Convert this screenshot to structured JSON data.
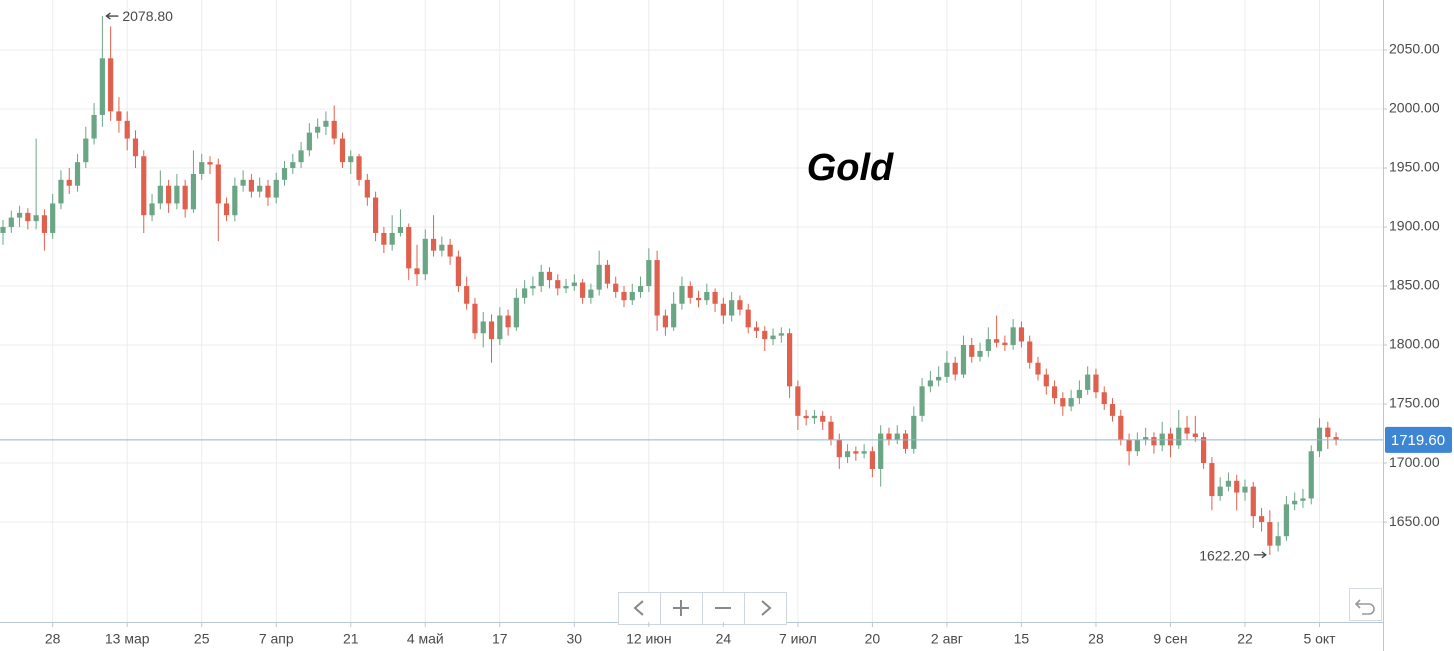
{
  "chart_data": {
    "type": "candlestick",
    "title": "Gold",
    "categories": [
      null,
      null,
      null,
      null,
      null,
      null,
      "28",
      null,
      null,
      null,
      null,
      null,
      null,
      null,
      null,
      "13 мар",
      null,
      null,
      null,
      null,
      null,
      null,
      null,
      null,
      "25",
      null,
      null,
      null,
      null,
      null,
      null,
      null,
      null,
      "7 апр",
      null,
      null,
      null,
      null,
      null,
      null,
      null,
      null,
      "21",
      null,
      null,
      null,
      null,
      null,
      null,
      null,
      null,
      "4 май",
      null,
      null,
      null,
      null,
      null,
      null,
      null,
      null,
      "17",
      null,
      null,
      null,
      null,
      null,
      null,
      null,
      null,
      "30",
      null,
      null,
      null,
      null,
      null,
      null,
      null,
      null,
      "12 июн",
      null,
      null,
      null,
      null,
      null,
      null,
      null,
      null,
      "24",
      null,
      null,
      null,
      null,
      null,
      null,
      null,
      null,
      "7 июл",
      null,
      null,
      null,
      null,
      null,
      null,
      null,
      null,
      "20",
      null,
      null,
      null,
      null,
      null,
      null,
      null,
      null,
      "2 авг",
      null,
      null,
      null,
      null,
      null,
      null,
      null,
      null,
      "15",
      null,
      null,
      null,
      null,
      null,
      null,
      null,
      null,
      "28",
      null,
      null,
      null,
      null,
      null,
      null,
      null,
      null,
      "9 сен",
      null,
      null,
      null,
      null,
      null,
      null,
      null,
      null,
      "22",
      null,
      null,
      null,
      null,
      null,
      null,
      null,
      null,
      "5 окт",
      null,
      null
    ],
    "ohlc": [
      [
        1895,
        1906,
        1885,
        1900
      ],
      [
        1900,
        1914,
        1895,
        1908
      ],
      [
        1908,
        1918,
        1900,
        1912
      ],
      [
        1912,
        1916,
        1898,
        1905
      ],
      [
        1905,
        1975,
        1898,
        1910
      ],
      [
        1910,
        1915,
        1880,
        1895
      ],
      [
        1895,
        1928,
        1890,
        1920
      ],
      [
        1920,
        1948,
        1915,
        1940
      ],
      [
        1940,
        1950,
        1928,
        1935
      ],
      [
        1935,
        1962,
        1930,
        1955
      ],
      [
        1955,
        1985,
        1950,
        1975
      ],
      [
        1975,
        2005,
        1970,
        1995
      ],
      [
        1995,
        2078.8,
        1985,
        2043
      ],
      [
        2043,
        2070,
        1990,
        1998
      ],
      [
        1998,
        2010,
        1980,
        1990
      ],
      [
        1990,
        1998,
        1965,
        1975
      ],
      [
        1975,
        1982,
        1950,
        1960
      ],
      [
        1960,
        1965,
        1895,
        1910
      ],
      [
        1910,
        1928,
        1905,
        1920
      ],
      [
        1920,
        1948,
        1915,
        1935
      ],
      [
        1935,
        1940,
        1912,
        1920
      ],
      [
        1920,
        1945,
        1915,
        1935
      ],
      [
        1935,
        1940,
        1908,
        1915
      ],
      [
        1915,
        1965,
        1912,
        1945
      ],
      [
        1945,
        1962,
        1940,
        1955
      ],
      [
        1955,
        1960,
        1945,
        1953
      ],
      [
        1953,
        1958,
        1888,
        1920
      ],
      [
        1920,
        1925,
        1905,
        1910
      ],
      [
        1910,
        1942,
        1905,
        1935
      ],
      [
        1935,
        1948,
        1930,
        1940
      ],
      [
        1940,
        1945,
        1925,
        1930
      ],
      [
        1930,
        1942,
        1925,
        1935
      ],
      [
        1935,
        1940,
        1918,
        1925
      ],
      [
        1925,
        1946,
        1920,
        1940
      ],
      [
        1940,
        1956,
        1935,
        1950
      ],
      [
        1950,
        1962,
        1945,
        1955
      ],
      [
        1955,
        1972,
        1950,
        1965
      ],
      [
        1965,
        1988,
        1960,
        1980
      ],
      [
        1980,
        1992,
        1975,
        1985
      ],
      [
        1985,
        1998,
        1978,
        1990
      ],
      [
        1990,
        2003,
        1970,
        1975
      ],
      [
        1975,
        1980,
        1950,
        1955
      ],
      [
        1955,
        1965,
        1945,
        1960
      ],
      [
        1960,
        1962,
        1935,
        1940
      ],
      [
        1940,
        1945,
        1918,
        1925
      ],
      [
        1925,
        1930,
        1888,
        1895
      ],
      [
        1895,
        1900,
        1878,
        1885
      ],
      [
        1885,
        1910,
        1880,
        1895
      ],
      [
        1895,
        1915,
        1892,
        1900
      ],
      [
        1900,
        1903,
        1855,
        1865
      ],
      [
        1865,
        1885,
        1850,
        1860
      ],
      [
        1860,
        1898,
        1855,
        1890
      ],
      [
        1890,
        1910,
        1875,
        1880
      ],
      [
        1880,
        1892,
        1875,
        1885
      ],
      [
        1885,
        1890,
        1868,
        1875
      ],
      [
        1875,
        1880,
        1845,
        1850
      ],
      [
        1850,
        1858,
        1830,
        1835
      ],
      [
        1835,
        1840,
        1805,
        1810
      ],
      [
        1810,
        1828,
        1798,
        1820
      ],
      [
        1820,
        1826,
        1785,
        1805
      ],
      [
        1805,
        1832,
        1800,
        1825
      ],
      [
        1825,
        1830,
        1808,
        1815
      ],
      [
        1815,
        1848,
        1812,
        1840
      ],
      [
        1840,
        1855,
        1835,
        1848
      ],
      [
        1848,
        1858,
        1842,
        1850
      ],
      [
        1850,
        1868,
        1845,
        1862
      ],
      [
        1862,
        1866,
        1848,
        1855
      ],
      [
        1855,
        1860,
        1842,
        1848
      ],
      [
        1848,
        1856,
        1844,
        1850
      ],
      [
        1850,
        1860,
        1846,
        1853
      ],
      [
        1853,
        1856,
        1835,
        1840
      ],
      [
        1840,
        1852,
        1835,
        1847
      ],
      [
        1847,
        1880,
        1842,
        1868
      ],
      [
        1868,
        1872,
        1848,
        1852
      ],
      [
        1852,
        1858,
        1840,
        1845
      ],
      [
        1845,
        1850,
        1832,
        1838
      ],
      [
        1838,
        1852,
        1834,
        1845
      ],
      [
        1845,
        1858,
        1840,
        1850
      ],
      [
        1850,
        1882,
        1845,
        1872
      ],
      [
        1872,
        1880,
        1812,
        1825
      ],
      [
        1825,
        1830,
        1808,
        1815
      ],
      [
        1815,
        1845,
        1812,
        1835
      ],
      [
        1835,
        1858,
        1830,
        1850
      ],
      [
        1850,
        1854,
        1835,
        1840
      ],
      [
        1840,
        1846,
        1832,
        1838
      ],
      [
        1838,
        1852,
        1834,
        1845
      ],
      [
        1845,
        1848,
        1828,
        1835
      ],
      [
        1835,
        1840,
        1818,
        1825
      ],
      [
        1825,
        1845,
        1820,
        1838
      ],
      [
        1838,
        1842,
        1825,
        1830
      ],
      [
        1830,
        1835,
        1810,
        1815
      ],
      [
        1815,
        1820,
        1806,
        1812
      ],
      [
        1812,
        1816,
        1795,
        1805
      ],
      [
        1805,
        1814,
        1800,
        1808
      ],
      [
        1808,
        1815,
        1802,
        1810
      ],
      [
        1810,
        1814,
        1755,
        1765
      ],
      [
        1765,
        1770,
        1728,
        1740
      ],
      [
        1740,
        1745,
        1732,
        1738
      ],
      [
        1738,
        1745,
        1733,
        1740
      ],
      [
        1740,
        1744,
        1728,
        1735
      ],
      [
        1735,
        1740,
        1715,
        1720
      ],
      [
        1720,
        1725,
        1695,
        1705
      ],
      [
        1705,
        1716,
        1700,
        1710
      ],
      [
        1710,
        1714,
        1702,
        1708
      ],
      [
        1708,
        1716,
        1704,
        1710
      ],
      [
        1710,
        1714,
        1688,
        1695
      ],
      [
        1695,
        1732,
        1680,
        1725
      ],
      [
        1725,
        1730,
        1715,
        1720
      ],
      [
        1720,
        1732,
        1716,
        1725
      ],
      [
        1725,
        1728,
        1708,
        1712
      ],
      [
        1712,
        1748,
        1708,
        1740
      ],
      [
        1740,
        1772,
        1735,
        1765
      ],
      [
        1765,
        1778,
        1760,
        1770
      ],
      [
        1770,
        1782,
        1765,
        1773
      ],
      [
        1773,
        1795,
        1768,
        1785
      ],
      [
        1785,
        1790,
        1770,
        1775
      ],
      [
        1775,
        1808,
        1772,
        1800
      ],
      [
        1800,
        1806,
        1785,
        1790
      ],
      [
        1790,
        1802,
        1786,
        1795
      ],
      [
        1795,
        1815,
        1790,
        1805
      ],
      [
        1805,
        1825,
        1798,
        1802
      ],
      [
        1802,
        1808,
        1795,
        1800
      ],
      [
        1800,
        1822,
        1796,
        1815
      ],
      [
        1815,
        1820,
        1798,
        1803
      ],
      [
        1803,
        1808,
        1780,
        1785
      ],
      [
        1785,
        1790,
        1770,
        1775
      ],
      [
        1775,
        1780,
        1758,
        1765
      ],
      [
        1765,
        1770,
        1750,
        1755
      ],
      [
        1755,
        1760,
        1740,
        1748
      ],
      [
        1748,
        1762,
        1744,
        1755
      ],
      [
        1755,
        1770,
        1750,
        1762
      ],
      [
        1762,
        1782,
        1758,
        1775
      ],
      [
        1775,
        1780,
        1755,
        1760
      ],
      [
        1760,
        1765,
        1745,
        1750
      ],
      [
        1750,
        1755,
        1735,
        1740
      ],
      [
        1740,
        1745,
        1715,
        1720
      ],
      [
        1720,
        1725,
        1698,
        1710
      ],
      [
        1710,
        1726,
        1706,
        1720
      ],
      [
        1720,
        1730,
        1715,
        1722
      ],
      [
        1722,
        1726,
        1708,
        1715
      ],
      [
        1715,
        1735,
        1710,
        1725
      ],
      [
        1725,
        1730,
        1705,
        1715
      ],
      [
        1715,
        1745,
        1712,
        1730
      ],
      [
        1730,
        1740,
        1720,
        1725
      ],
      [
        1725,
        1740,
        1718,
        1722
      ],
      [
        1722,
        1726,
        1695,
        1700
      ],
      [
        1700,
        1705,
        1660,
        1672
      ],
      [
        1672,
        1688,
        1668,
        1680
      ],
      [
        1680,
        1692,
        1676,
        1685
      ],
      [
        1685,
        1690,
        1660,
        1675
      ],
      [
        1675,
        1686,
        1668,
        1680
      ],
      [
        1680,
        1684,
        1645,
        1655
      ],
      [
        1655,
        1662,
        1642,
        1650
      ],
      [
        1650,
        1660,
        1622.2,
        1630
      ],
      [
        1630,
        1650,
        1625,
        1638
      ],
      [
        1638,
        1672,
        1634,
        1665
      ],
      [
        1665,
        1675,
        1660,
        1668
      ],
      [
        1668,
        1678,
        1662,
        1670
      ],
      [
        1670,
        1715,
        1665,
        1710
      ],
      [
        1710,
        1738,
        1705,
        1730
      ],
      [
        1730,
        1735,
        1712,
        1722
      ],
      [
        1722,
        1726,
        1715,
        1719.6
      ]
    ],
    "up_color": "#6aa585",
    "down_color": "#e0604e",
    "ylim": [
      1565.3,
      2092.4
    ],
    "yticks": [
      {
        "value": 1650,
        "label": "1650.00"
      },
      {
        "value": 1700,
        "label": "1700.00"
      },
      {
        "value": 1750,
        "label": "1750.00"
      },
      {
        "value": 1800,
        "label": "1800.00"
      },
      {
        "value": 1850,
        "label": "1850.00"
      },
      {
        "value": 1900,
        "label": "1900.00"
      },
      {
        "value": 1950,
        "label": "1950.00"
      },
      {
        "value": 2000,
        "label": "2000.00"
      },
      {
        "value": 2050,
        "label": "2050.00"
      }
    ],
    "grid": true,
    "last_price": {
      "value": 1719.6,
      "label": "1719.60"
    },
    "annotations": [
      {
        "value": 2078.8,
        "label": "2078.80"
      },
      {
        "value": 1622.2,
        "label": "1622.20"
      }
    ]
  }
}
